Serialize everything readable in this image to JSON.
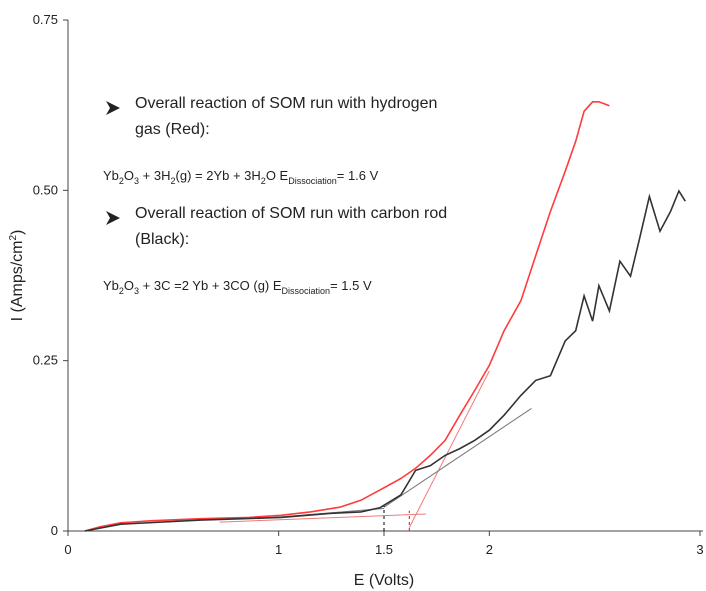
{
  "chart_data": {
    "type": "line",
    "xlabel": "E (Volts)",
    "ylabel": [
      "I (Amps/cm",
      "2",
      ")"
    ],
    "xlim": [
      0,
      3
    ],
    "ylim": [
      0,
      0.75
    ],
    "xticks": [
      0,
      1,
      1.5,
      2,
      3
    ],
    "yticks": [
      0,
      0.25,
      {
        "value": 0.5,
        "label": "0.50"
      },
      0.75
    ],
    "series": [
      {
        "color": "#ff3b3b",
        "x": [
          0.08,
          0.15,
          0.25,
          0.39,
          0.63,
          0.86,
          1.01,
          1.15,
          1.29,
          1.39,
          1.48,
          1.58,
          1.65,
          1.72,
          1.79,
          1.86,
          1.93,
          2.0,
          2.07,
          2.15,
          2.22,
          2.29,
          2.36,
          2.41,
          2.45,
          2.49,
          2.52,
          2.57
        ],
        "values": [
          0,
          0.006,
          0.012,
          0.015,
          0.018,
          0.02,
          0.023,
          0.028,
          0.035,
          0.045,
          0.06,
          0.077,
          0.092,
          0.111,
          0.133,
          0.17,
          0.206,
          0.243,
          0.294,
          0.338,
          0.404,
          0.469,
          0.528,
          0.572,
          0.616,
          0.63,
          0.63,
          0.624
        ]
      },
      {
        "color": "#333333",
        "x": [
          0.08,
          0.25,
          0.63,
          1.01,
          1.25,
          1.39,
          1.48,
          1.58,
          1.65,
          1.72,
          1.79,
          1.86,
          1.93,
          2.0,
          2.07,
          2.15,
          2.22,
          2.29,
          2.36,
          2.41,
          2.45,
          2.49,
          2.52,
          2.57,
          2.62,
          2.67,
          2.71,
          2.76,
          2.81,
          2.86,
          2.9,
          2.93
        ],
        "values": [
          0,
          0.01,
          0.016,
          0.02,
          0.026,
          0.028,
          0.034,
          0.053,
          0.089,
          0.096,
          0.111,
          0.121,
          0.133,
          0.148,
          0.17,
          0.199,
          0.221,
          0.228,
          0.279,
          0.294,
          0.345,
          0.308,
          0.36,
          0.323,
          0.396,
          0.374,
          0.425,
          0.491,
          0.44,
          0.469,
          0.499,
          0.484
        ]
      }
    ],
    "guides": [
      {
        "color": "#f07a7a",
        "x": [
          1.62,
          2.0
        ],
        "values": [
          0.005,
          0.235
        ]
      },
      {
        "color": "#f07a7a",
        "x": [
          0.72,
          1.7
        ],
        "values": [
          0.013,
          0.025
        ]
      },
      {
        "color": "#777777",
        "x": [
          1.5,
          2.2
        ],
        "values": [
          0.035,
          0.18
        ]
      },
      {
        "color": "#777777",
        "x": [
          0.9,
          1.5
        ],
        "values": [
          0.018,
          0.033
        ]
      },
      {
        "color": "#000000",
        "dashed": true,
        "x": [
          1.5,
          1.5
        ],
        "values": [
          0,
          0.038
        ]
      },
      {
        "color": "#ff0000",
        "dashed": true,
        "x": [
          1.62,
          1.62
        ],
        "values": [
          0,
          0.03
        ]
      }
    ],
    "notes": [
      {
        "lines": [
          "Overall reaction of  SOM run with hydrogen",
          "gas (Red):"
        ]
      },
      {
        "parts": [
          "Yb",
          "2",
          "O",
          "3",
          " + 3H",
          "2",
          "(g) = 2Yb + 3H",
          "2",
          "O    E",
          "Dissociation",
          "= 1.6 V"
        ]
      },
      {
        "lines": [
          "Overall reaction of SOM run with carbon rod",
          "(Black):"
        ]
      },
      {
        "parts": [
          "Yb",
          "2",
          "O",
          "3",
          " + 3C =2 Yb + 3CO (g)    E",
          "Dissociation",
          "= 1.5 V"
        ]
      }
    ]
  }
}
